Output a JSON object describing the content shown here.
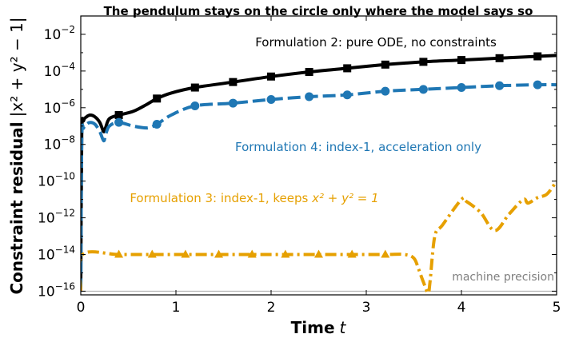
{
  "chart_data": {
    "type": "line",
    "title": "The pendulum stays on the circle only where the model says so",
    "xlabel": "Time",
    "xlabel_var": "t",
    "ylabel": "Constraint residual",
    "ylabel_math": "|x² + y² − 1|",
    "xlim": [
      0,
      5
    ],
    "ylim_log10": [
      -16.2,
      -1.0
    ],
    "yscale": "log",
    "grid": false,
    "x_ticks": [
      0,
      1,
      2,
      3,
      4,
      5
    ],
    "x_tick_labels": [
      "0",
      "1",
      "2",
      "3",
      "4",
      "5"
    ],
    "y_ticks_log10": [
      -16,
      -14,
      -12,
      -10,
      -8,
      -6,
      -4,
      -2
    ],
    "y_tick_base": "10",
    "y_tick_exponents": [
      "−16",
      "−14",
      "−12",
      "−10",
      "−8",
      "−6",
      "−4",
      "−2"
    ],
    "series": [
      {
        "id": "f2",
        "color": "#000000",
        "marker": "square",
        "dash": "solid",
        "x": [
          0.0,
          0.01,
          0.03,
          0.06,
          0.1,
          0.15,
          0.2,
          0.24,
          0.26,
          0.3,
          0.4,
          0.55,
          0.7,
          0.8,
          0.95,
          1.2,
          1.6,
          2.0,
          2.4,
          2.8,
          3.2,
          3.6,
          4.0,
          4.4,
          4.8,
          5.0
        ],
        "y_log10": [
          -16.0,
          -7.5,
          -6.7,
          -6.5,
          -6.4,
          -6.5,
          -6.8,
          -7.3,
          -7.1,
          -6.6,
          -6.4,
          -6.2,
          -5.8,
          -5.5,
          -5.2,
          -4.9,
          -4.6,
          -4.3,
          -4.05,
          -3.85,
          -3.65,
          -3.5,
          -3.4,
          -3.3,
          -3.2,
          -3.15
        ]
      },
      {
        "id": "f4",
        "color": "#1f77b4",
        "marker": "circle",
        "dash": "dashed",
        "x": [
          0.0,
          0.01,
          0.03,
          0.06,
          0.1,
          0.15,
          0.2,
          0.24,
          0.26,
          0.3,
          0.4,
          0.55,
          0.7,
          0.8,
          0.95,
          1.2,
          1.6,
          2.0,
          2.4,
          2.8,
          3.2,
          3.6,
          4.0,
          4.4,
          4.8,
          5.0
        ],
        "y_log10": [
          -16.0,
          -7.8,
          -7.1,
          -6.9,
          -6.8,
          -6.9,
          -7.3,
          -7.8,
          -7.5,
          -7.0,
          -6.8,
          -7.0,
          -7.1,
          -6.9,
          -6.4,
          -5.9,
          -5.75,
          -5.55,
          -5.4,
          -5.3,
          -5.1,
          -5.0,
          -4.9,
          -4.8,
          -4.75,
          -4.75
        ]
      },
      {
        "id": "f3",
        "color": "#e6a000",
        "marker": "triangle",
        "dash": "dashdot",
        "x": [
          0.0,
          0.02,
          0.4,
          0.8,
          1.2,
          1.6,
          2.0,
          2.4,
          2.8,
          3.2,
          3.4,
          3.5,
          3.55,
          3.6,
          3.65,
          3.67,
          3.72,
          3.8,
          4.0,
          4.05,
          4.2,
          4.35,
          4.5,
          4.65,
          4.7,
          4.8,
          4.9,
          5.0
        ],
        "y_log10": [
          -16.0,
          -14.0,
          -14.0,
          -14.0,
          -14.0,
          -14.0,
          -14.0,
          -14.0,
          -14.0,
          -14.0,
          -14.0,
          -14.2,
          -14.8,
          -15.5,
          -16.1,
          -15.5,
          -13.0,
          -12.4,
          -11.0,
          -11.1,
          -11.7,
          -12.7,
          -11.8,
          -11.0,
          -11.2,
          -10.9,
          -10.7,
          -10.0
        ]
      }
    ],
    "annotations": [
      {
        "id": "f2",
        "text": "Formulation 2: pure ODE, no constraints",
        "color": "#000000"
      },
      {
        "id": "f4",
        "text": "Formulation 4: index-1, acceleration only",
        "color": "#1f77b4"
      },
      {
        "id": "f3",
        "text_prefix": "Formulation 3: index-1, keeps ",
        "text_math": "x² + y² = 1",
        "color": "#e6a000"
      }
    ],
    "reference_line": {
      "y_log10": -16.0,
      "label": "machine precision",
      "color": "#aaaaaa"
    }
  }
}
